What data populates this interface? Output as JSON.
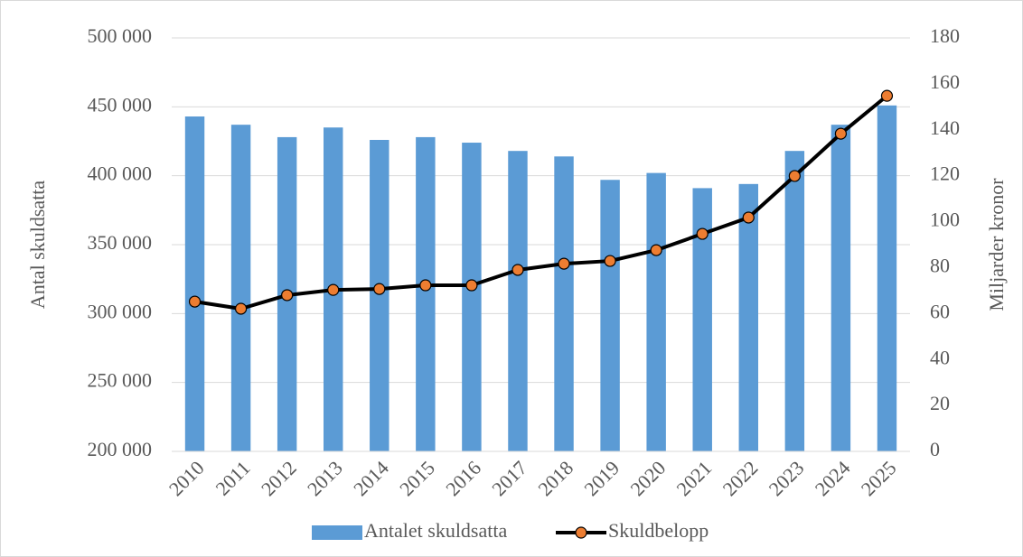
{
  "chart_data": {
    "type": "bar_line",
    "categories": [
      "2010",
      "2011",
      "2012",
      "2013",
      "2014",
      "2015",
      "2016",
      "2017",
      "2018",
      "2019",
      "2020",
      "2021",
      "2022",
      "2023",
      "2024",
      "2025"
    ],
    "series": [
      {
        "name": "Antalet skuldsatta",
        "type": "bar",
        "color": "#5b9bd5",
        "values": [
          443000,
          437000,
          428000,
          435000,
          426000,
          428000,
          424000,
          418000,
          414000,
          397000,
          402000,
          391000,
          394000,
          418000,
          437000,
          451000
        ]
      },
      {
        "name": "Skuldbelopp",
        "type": "line",
        "axis": "y2",
        "color": "#000000",
        "marker_color": "#ed7d31",
        "values": [
          65.2,
          62.1,
          68.0,
          70.3,
          70.7,
          72.3,
          72.3,
          79.0,
          81.7,
          82.9,
          87.6,
          94.7,
          101.8,
          119.9,
          138.3,
          154.8
        ]
      }
    ],
    "ylabel": "Antal skuldsatta",
    "y2label": "Miljarder kronor",
    "ylim": [
      200000,
      500000
    ],
    "yticks": [
      {
        "value": 200000,
        "label": "200 000"
      },
      {
        "value": 250000,
        "label": "250 000"
      },
      {
        "value": 300000,
        "label": "300 000"
      },
      {
        "value": 350000,
        "label": "350 000"
      },
      {
        "value": 400000,
        "label": "400 000"
      },
      {
        "value": 450000,
        "label": "450 000"
      },
      {
        "value": 500000,
        "label": "500 000"
      }
    ],
    "y2lim": [
      0,
      180
    ],
    "y2ticks": [
      0,
      20,
      40,
      60,
      80,
      100,
      120,
      140,
      160,
      180
    ],
    "grid": true,
    "legend": "bottom"
  }
}
